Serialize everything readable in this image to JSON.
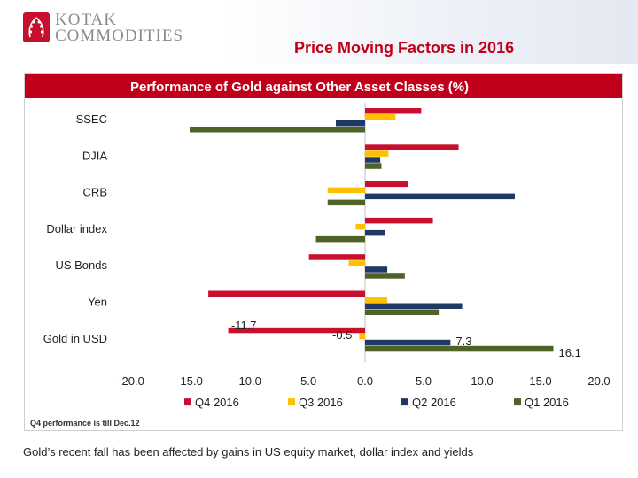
{
  "header": {
    "logo_line1": "KOTAK",
    "logo_line2": "COMMODITIES",
    "slide_title": "Price Moving Factors in 2016"
  },
  "colors": {
    "title_bar": "#c0001a",
    "q4": "#c8102e",
    "q3": "#ffc000",
    "q2": "#1f3864",
    "q1": "#4f6228"
  },
  "chart_data": {
    "type": "bar",
    "orientation": "horizontal",
    "title": "Performance of Gold against Other Asset Classes (%)",
    "categories": [
      "SSEC",
      "DJIA",
      "CRB",
      "Dollar index",
      "US Bonds",
      "Yen",
      "Gold in USD"
    ],
    "series": [
      {
        "name": "Q4 2016",
        "values": [
          4.8,
          8.0,
          3.7,
          5.8,
          -4.8,
          -13.4,
          -11.7
        ]
      },
      {
        "name": "Q3 2016",
        "values": [
          2.6,
          2.0,
          -3.2,
          -0.8,
          -1.4,
          1.9,
          -0.5
        ]
      },
      {
        "name": "Q2 2016",
        "values": [
          -2.5,
          1.3,
          12.8,
          1.7,
          1.9,
          8.3,
          7.3
        ]
      },
      {
        "name": "Q1 2016",
        "values": [
          -15.0,
          1.4,
          -3.2,
          -4.2,
          3.4,
          6.3,
          16.1
        ]
      }
    ],
    "data_labels": [
      {
        "category": "Gold in USD",
        "series": "Q4 2016",
        "text": "-11.7"
      },
      {
        "category": "Gold in USD",
        "series": "Q3 2016",
        "text": "-0.5"
      },
      {
        "category": "Gold in USD",
        "series": "Q2 2016",
        "text": "7.3"
      },
      {
        "category": "Gold in USD",
        "series": "Q1 2016",
        "text": "16.1"
      }
    ],
    "xlim": [
      -20,
      20
    ],
    "xticks": [
      "-20.0",
      "-15.0",
      "-10.0",
      "-5.0",
      "0.0",
      "5.0",
      "10.0",
      "15.0",
      "20.0"
    ],
    "xtick_values": [
      -20,
      -15,
      -10,
      -5,
      0,
      5,
      10,
      15,
      20
    ],
    "legend_position": "bottom",
    "grid": false
  },
  "chart_note": "Q4 performance is till Dec.12",
  "caption": "Gold’s recent fall has been affected by gains in US equity market, dollar index and yields"
}
